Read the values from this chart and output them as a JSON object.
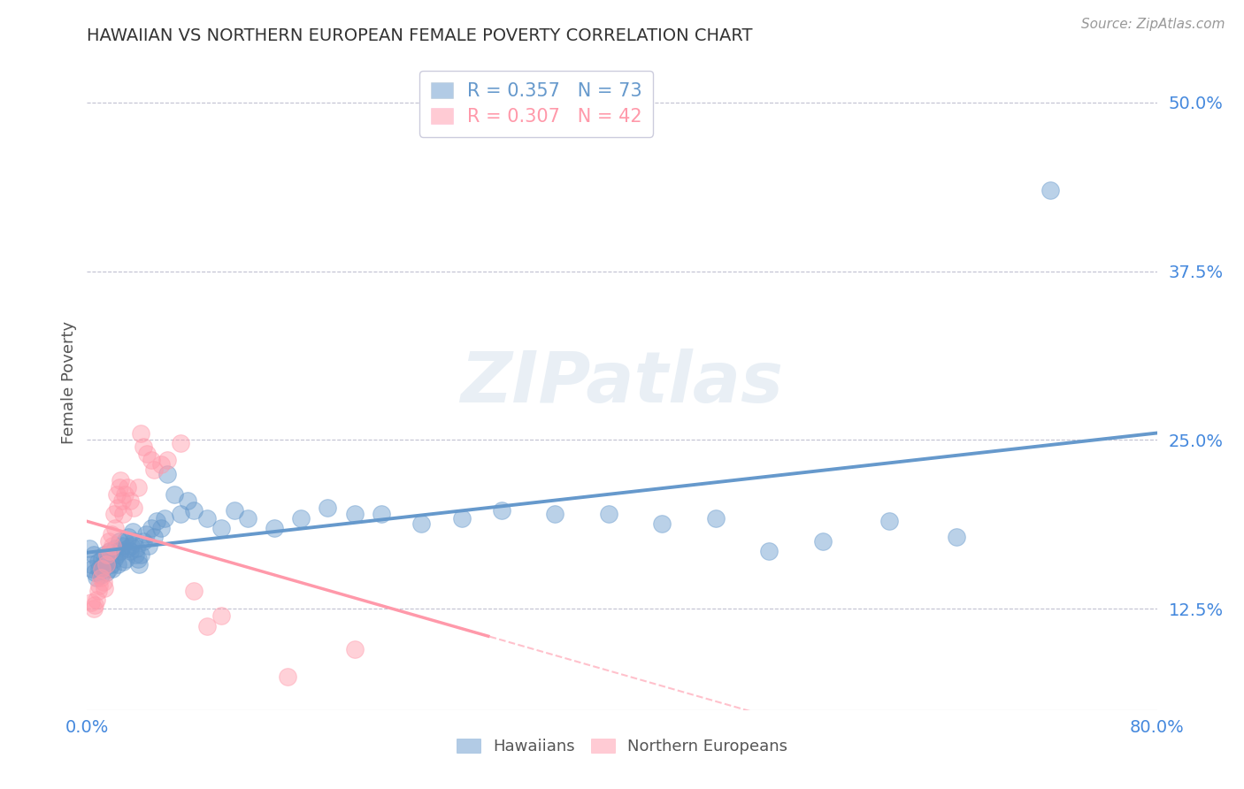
{
  "title": "HAWAIIAN VS NORTHERN EUROPEAN FEMALE POVERTY CORRELATION CHART",
  "source": "Source: ZipAtlas.com",
  "ylabel": "Female Poverty",
  "xlim": [
    0.0,
    0.8
  ],
  "ylim": [
    0.05,
    0.535
  ],
  "yticks": [
    0.125,
    0.25,
    0.375,
    0.5
  ],
  "ytick_labels": [
    "12.5%",
    "25.0%",
    "37.5%",
    "50.0%"
  ],
  "xtick_labels": [
    "0.0%",
    "80.0%"
  ],
  "hawaiian_color": "#6699CC",
  "northern_color": "#FF99AA",
  "hawaiian_R": 0.357,
  "hawaiian_N": 73,
  "northern_R": 0.307,
  "northern_N": 42,
  "watermark_text": "ZIPatlas",
  "background_color": "#FFFFFF",
  "grid_color": "#BBBBCC",
  "hawaiian_scatter": [
    [
      0.002,
      0.17
    ],
    [
      0.003,
      0.158
    ],
    [
      0.004,
      0.155
    ],
    [
      0.005,
      0.165
    ],
    [
      0.006,
      0.152
    ],
    [
      0.007,
      0.148
    ],
    [
      0.008,
      0.16
    ],
    [
      0.009,
      0.155
    ],
    [
      0.01,
      0.15
    ],
    [
      0.011,
      0.162
    ],
    [
      0.012,
      0.158
    ],
    [
      0.013,
      0.165
    ],
    [
      0.014,
      0.152
    ],
    [
      0.015,
      0.16
    ],
    [
      0.016,
      0.155
    ],
    [
      0.017,
      0.168
    ],
    [
      0.018,
      0.158
    ],
    [
      0.019,
      0.155
    ],
    [
      0.02,
      0.162
    ],
    [
      0.021,
      0.17
    ],
    [
      0.022,
      0.165
    ],
    [
      0.023,
      0.158
    ],
    [
      0.024,
      0.175
    ],
    [
      0.025,
      0.168
    ],
    [
      0.026,
      0.172
    ],
    [
      0.027,
      0.16
    ],
    [
      0.028,
      0.175
    ],
    [
      0.029,
      0.162
    ],
    [
      0.03,
      0.17
    ],
    [
      0.031,
      0.178
    ],
    [
      0.032,
      0.168
    ],
    [
      0.033,
      0.172
    ],
    [
      0.034,
      0.182
    ],
    [
      0.035,
      0.175
    ],
    [
      0.036,
      0.165
    ],
    [
      0.037,
      0.17
    ],
    [
      0.038,
      0.162
    ],
    [
      0.039,
      0.158
    ],
    [
      0.04,
      0.165
    ],
    [
      0.042,
      0.175
    ],
    [
      0.044,
      0.18
    ],
    [
      0.046,
      0.172
    ],
    [
      0.048,
      0.185
    ],
    [
      0.05,
      0.178
    ],
    [
      0.052,
      0.19
    ],
    [
      0.055,
      0.185
    ],
    [
      0.058,
      0.192
    ],
    [
      0.06,
      0.225
    ],
    [
      0.065,
      0.21
    ],
    [
      0.07,
      0.195
    ],
    [
      0.075,
      0.205
    ],
    [
      0.08,
      0.198
    ],
    [
      0.09,
      0.192
    ],
    [
      0.1,
      0.185
    ],
    [
      0.11,
      0.198
    ],
    [
      0.12,
      0.192
    ],
    [
      0.14,
      0.185
    ],
    [
      0.16,
      0.192
    ],
    [
      0.18,
      0.2
    ],
    [
      0.2,
      0.195
    ],
    [
      0.22,
      0.195
    ],
    [
      0.25,
      0.188
    ],
    [
      0.28,
      0.192
    ],
    [
      0.31,
      0.198
    ],
    [
      0.35,
      0.195
    ],
    [
      0.39,
      0.195
    ],
    [
      0.43,
      0.188
    ],
    [
      0.47,
      0.192
    ],
    [
      0.51,
      0.168
    ],
    [
      0.55,
      0.175
    ],
    [
      0.6,
      0.19
    ],
    [
      0.65,
      0.178
    ],
    [
      0.72,
      0.435
    ]
  ],
  "northern_scatter": [
    [
      0.003,
      0.13
    ],
    [
      0.005,
      0.125
    ],
    [
      0.006,
      0.128
    ],
    [
      0.007,
      0.132
    ],
    [
      0.008,
      0.138
    ],
    [
      0.009,
      0.142
    ],
    [
      0.01,
      0.148
    ],
    [
      0.011,
      0.155
    ],
    [
      0.012,
      0.145
    ],
    [
      0.013,
      0.14
    ],
    [
      0.014,
      0.158
    ],
    [
      0.015,
      0.165
    ],
    [
      0.016,
      0.175
    ],
    [
      0.017,
      0.168
    ],
    [
      0.018,
      0.18
    ],
    [
      0.019,
      0.172
    ],
    [
      0.02,
      0.195
    ],
    [
      0.021,
      0.185
    ],
    [
      0.022,
      0.21
    ],
    [
      0.023,
      0.2
    ],
    [
      0.024,
      0.215
    ],
    [
      0.025,
      0.22
    ],
    [
      0.026,
      0.205
    ],
    [
      0.027,
      0.195
    ],
    [
      0.028,
      0.21
    ],
    [
      0.03,
      0.215
    ],
    [
      0.032,
      0.205
    ],
    [
      0.035,
      0.2
    ],
    [
      0.038,
      0.215
    ],
    [
      0.04,
      0.255
    ],
    [
      0.042,
      0.245
    ],
    [
      0.045,
      0.24
    ],
    [
      0.048,
      0.235
    ],
    [
      0.05,
      0.228
    ],
    [
      0.055,
      0.232
    ],
    [
      0.06,
      0.235
    ],
    [
      0.07,
      0.248
    ],
    [
      0.08,
      0.138
    ],
    [
      0.09,
      0.112
    ],
    [
      0.1,
      0.12
    ],
    [
      0.15,
      0.075
    ],
    [
      0.2,
      0.095
    ]
  ]
}
